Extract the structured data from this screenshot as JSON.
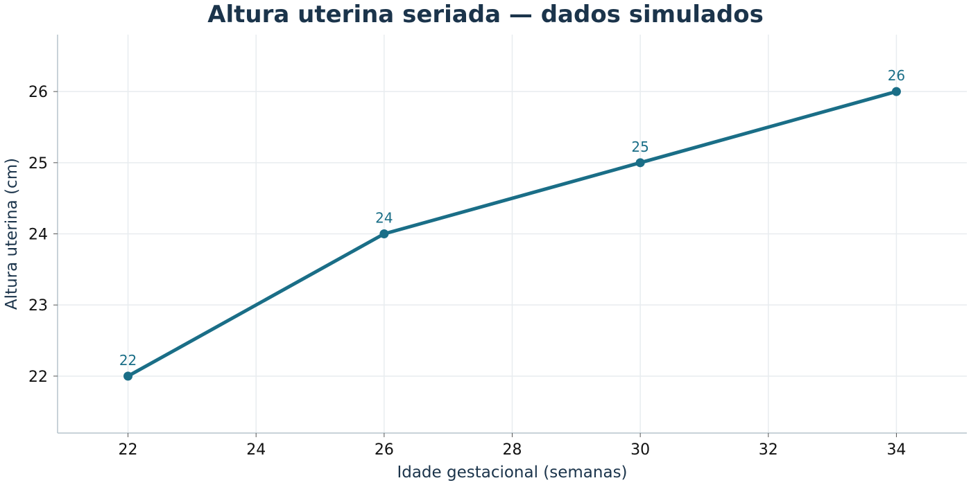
{
  "chart_data": {
    "type": "line",
    "title": "Altura uterina seriada — dados simulados",
    "xlabel": "Idade gestacional (semanas)",
    "ylabel": "Altura uterina (cm)",
    "x": [
      22,
      26,
      30,
      34
    ],
    "series": [
      {
        "values": [
          22,
          24,
          25,
          26
        ],
        "data_labels": [
          "22",
          "24",
          "25",
          "26"
        ]
      }
    ],
    "xlim": [
      20.9,
      35.1
    ],
    "ylim": [
      21.2,
      26.8
    ],
    "xticks": [
      22,
      24,
      26,
      28,
      30,
      32,
      34
    ],
    "yticks": [
      22,
      23,
      24,
      25,
      26
    ],
    "grid": true,
    "colors": {
      "line": "#1a6e87",
      "grid": "#e8ecef",
      "axis": "#b5c3cc"
    }
  }
}
